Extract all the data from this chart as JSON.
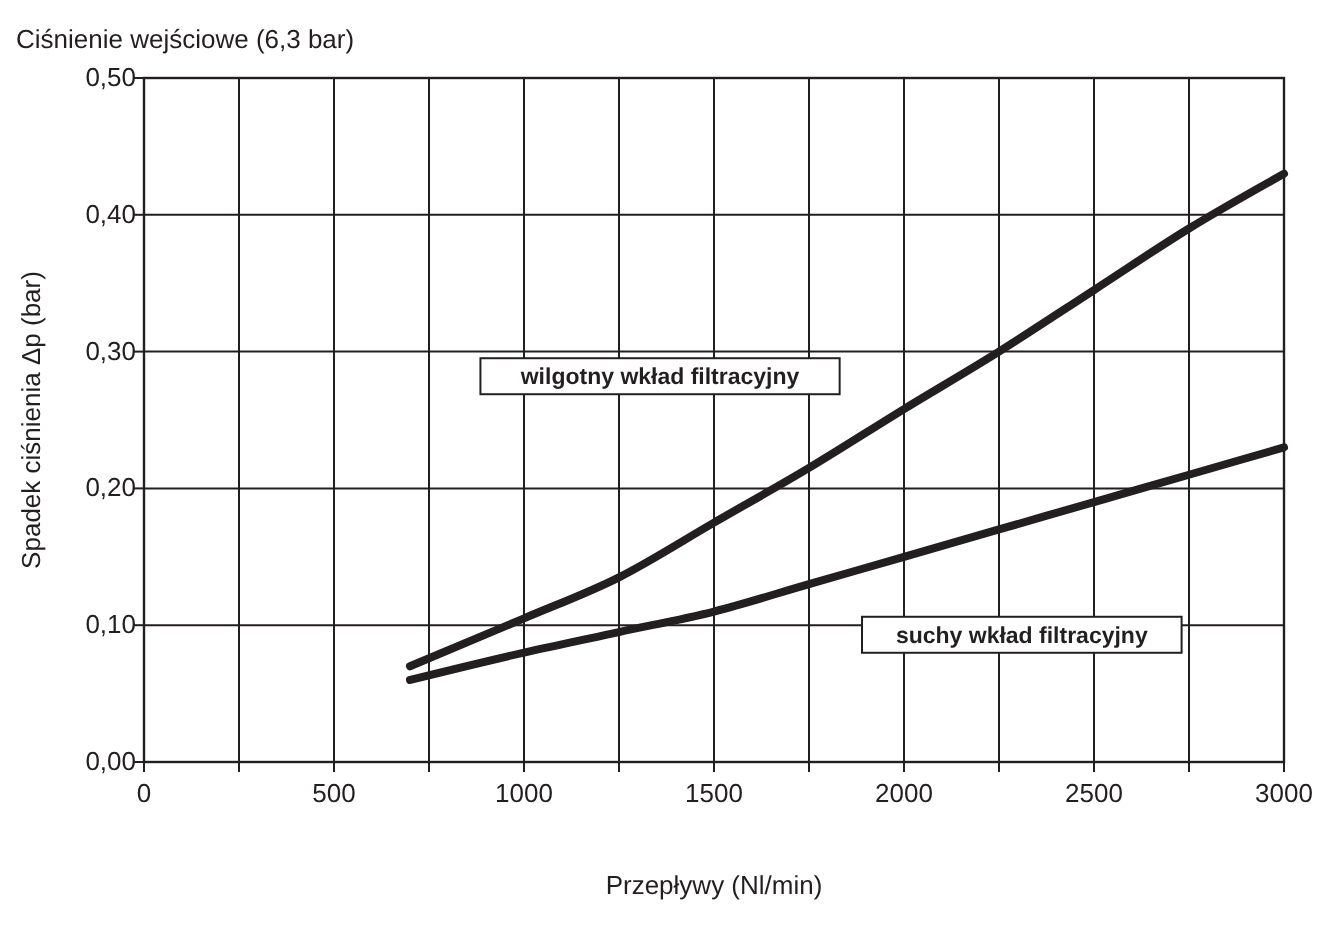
{
  "chart_data": {
    "type": "line",
    "title": "Ciśnienie wejściowe (6,3 bar)",
    "xlabel": "Przepływy (Nl/min)",
    "ylabel": "Spadek ciśnienia Δp  (bar)",
    "xlim": [
      0,
      3000
    ],
    "xticks": [
      0,
      {
        "value": 250,
        "label": null
      },
      500,
      {
        "value": 750,
        "label": null
      },
      1000,
      {
        "value": 1250,
        "label": null
      },
      1500,
      {
        "value": 1750,
        "label": null
      },
      2000,
      {
        "value": 2250,
        "label": null
      },
      2500,
      {
        "value": 2750,
        "label": null
      },
      3000
    ],
    "ylim": [
      0,
      0.5
    ],
    "yticks": [
      {
        "value": 0,
        "label": "0,00"
      },
      {
        "value": 0.1,
        "label": "0,10"
      },
      {
        "value": 0.2,
        "label": "0,20"
      },
      {
        "value": 0.3,
        "label": "0,30"
      },
      {
        "value": 0.4,
        "label": "0,40"
      },
      {
        "value": 0.5,
        "label": "0,50"
      }
    ],
    "grid": true,
    "line_style": "solid",
    "marker": "none",
    "series": [
      {
        "name": "wilgotny wkład filtracyjny",
        "color": "#231f20",
        "x": [
          700,
          1000,
          1250,
          1500,
          1750,
          2000,
          2250,
          2500,
          2750,
          3000
        ],
        "values": [
          0.07,
          0.105,
          0.135,
          0.175,
          0.215,
          0.258,
          0.3,
          0.345,
          0.39,
          0.43
        ]
      },
      {
        "name": "suchy wkład filtracyjny",
        "color": "#231f20",
        "x": [
          700,
          1000,
          1250,
          1500,
          1750,
          2000,
          2250,
          2500,
          2750,
          3000
        ],
        "values": [
          0.06,
          0.08,
          0.095,
          0.11,
          0.13,
          0.15,
          0.17,
          0.19,
          0.21,
          0.23
        ]
      }
    ]
  }
}
